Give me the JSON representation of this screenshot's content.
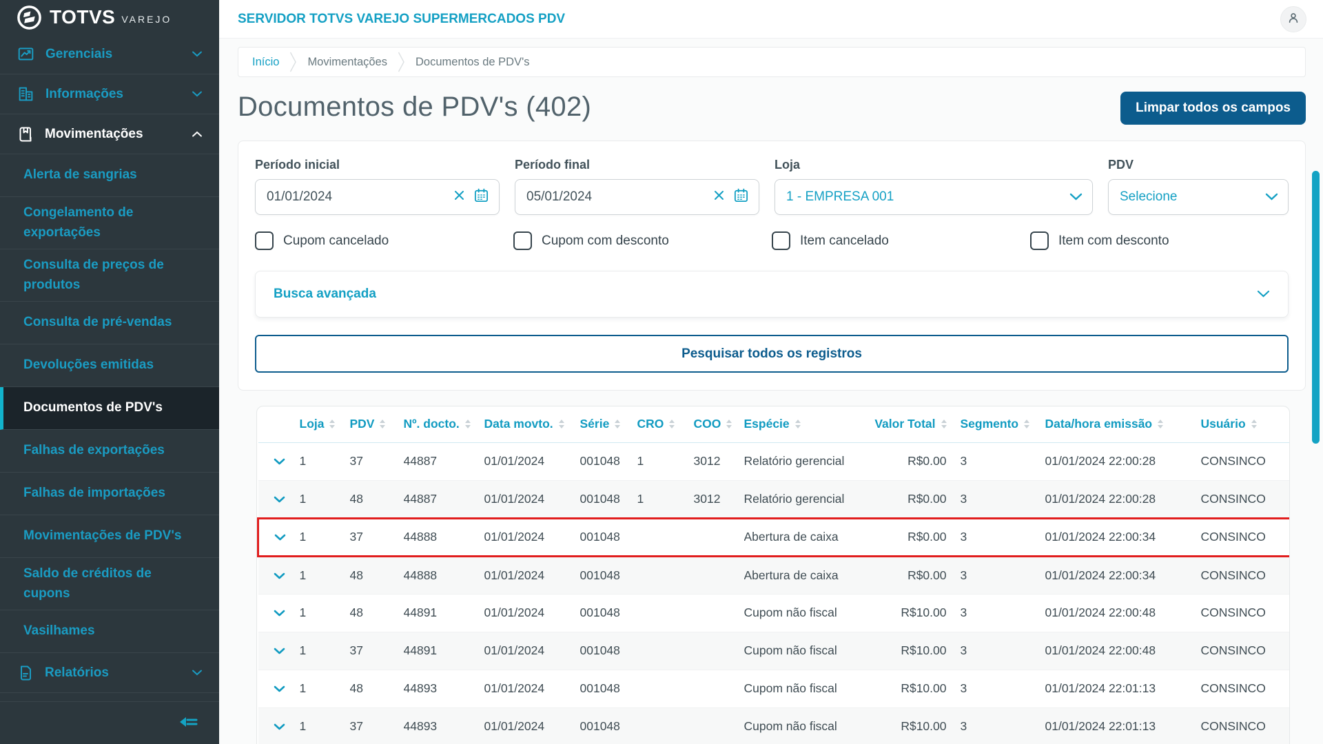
{
  "colors": {
    "accent": "#14a0c4",
    "sidebar_link": "#1a9cc3",
    "dark_blue": "#0c5c8d",
    "sidebar_bg": "#2c373d",
    "sidebar_active_bg": "#1b242a",
    "table_header_teal": "#119bc1",
    "highlight_red": "#e11d1d",
    "scrollbar": "#14a3c4"
  },
  "brand": {
    "name": "TOTVS",
    "sub": "VAREJO"
  },
  "topbar": {
    "title": "SERVIDOR TOTVS VAREJO SUPERMERCADOS PDV"
  },
  "breadcrumb": {
    "items": [
      "Início",
      "Movimentações",
      "Documentos de PDV's"
    ]
  },
  "sidebar": {
    "sections": [
      {
        "label": "Gerenciais",
        "icon": "chart-icon",
        "chevron": "down",
        "active": false
      },
      {
        "label": "Informações",
        "icon": "building-icon",
        "chevron": "down",
        "active": false
      },
      {
        "label": "Movimentações",
        "icon": "book-icon",
        "chevron": "up",
        "active": true
      }
    ],
    "submenu": [
      "Alerta de sangrias",
      "Congelamento de exportações",
      "Consulta de preços de produtos",
      "Consulta de pré-vendas",
      "Devoluções emitidas",
      "Documentos de PDV's",
      "Falhas de exportações",
      "Falhas de importações",
      "Movimentações de PDV's",
      "Saldo de créditos de cupons",
      "Vasilhames"
    ],
    "active_item": "Documentos de PDV's",
    "reports": {
      "label": "Relatórios",
      "icon": "report-icon",
      "chevron": "down"
    }
  },
  "page": {
    "title": "Documentos de PDV's (402)",
    "clear_button_label": "Limpar todos os campos"
  },
  "filters": {
    "fields": [
      {
        "label": "Período inicial",
        "value": "01/01/2024",
        "type": "date"
      },
      {
        "label": "Período final",
        "value": "05/01/2024",
        "type": "date"
      },
      {
        "label": "Loja",
        "value": "1 - EMPRESA 001",
        "type": "select"
      },
      {
        "label": "PDV",
        "value": "Selecione",
        "type": "select"
      }
    ],
    "checkboxes": [
      {
        "label": "Cupom cancelado",
        "checked": false
      },
      {
        "label": "Cupom com desconto",
        "checked": false
      },
      {
        "label": "Item cancelado",
        "checked": false
      },
      {
        "label": "Item com desconto",
        "checked": false
      }
    ],
    "advanced_label": "Busca avançada",
    "search_button_label": "Pesquisar todos os registros"
  },
  "table": {
    "columns": [
      {
        "key": "loja",
        "label": "Loja"
      },
      {
        "key": "pdv",
        "label": "PDV"
      },
      {
        "key": "docto",
        "label": "Nº. docto."
      },
      {
        "key": "data",
        "label": "Data movto."
      },
      {
        "key": "serie",
        "label": "Série"
      },
      {
        "key": "cro",
        "label": "CRO"
      },
      {
        "key": "coo",
        "label": "COO"
      },
      {
        "key": "especie",
        "label": "Espécie"
      },
      {
        "key": "valor",
        "label": "Valor Total"
      },
      {
        "key": "segmento",
        "label": "Segmento"
      },
      {
        "key": "emissao",
        "label": "Data/hora emissão"
      },
      {
        "key": "usuario",
        "label": "Usuário"
      }
    ],
    "rows": [
      {
        "loja": "1",
        "pdv": "37",
        "docto": "44887",
        "data": "01/01/2024",
        "serie": "001048",
        "cro": "1",
        "coo": "3012",
        "especie": "Relatório gerencial",
        "valor": "R$0.00",
        "segmento": "3",
        "emissao": "01/01/2024 22:00:28",
        "usuario": "CONSINCO",
        "highlight": false
      },
      {
        "loja": "1",
        "pdv": "48",
        "docto": "44887",
        "data": "01/01/2024",
        "serie": "001048",
        "cro": "1",
        "coo": "3012",
        "especie": "Relatório gerencial",
        "valor": "R$0.00",
        "segmento": "3",
        "emissao": "01/01/2024 22:00:28",
        "usuario": "CONSINCO",
        "highlight": false
      },
      {
        "loja": "1",
        "pdv": "37",
        "docto": "44888",
        "data": "01/01/2024",
        "serie": "001048",
        "cro": "",
        "coo": "",
        "especie": "Abertura de caixa",
        "valor": "R$0.00",
        "segmento": "3",
        "emissao": "01/01/2024 22:00:34",
        "usuario": "CONSINCO",
        "highlight": true
      },
      {
        "loja": "1",
        "pdv": "48",
        "docto": "44888",
        "data": "01/01/2024",
        "serie": "001048",
        "cro": "",
        "coo": "",
        "especie": "Abertura de caixa",
        "valor": "R$0.00",
        "segmento": "3",
        "emissao": "01/01/2024 22:00:34",
        "usuario": "CONSINCO",
        "highlight": false
      },
      {
        "loja": "1",
        "pdv": "48",
        "docto": "44891",
        "data": "01/01/2024",
        "serie": "001048",
        "cro": "",
        "coo": "",
        "especie": "Cupom não fiscal",
        "valor": "R$10.00",
        "segmento": "3",
        "emissao": "01/01/2024 22:00:48",
        "usuario": "CONSINCO",
        "highlight": false
      },
      {
        "loja": "1",
        "pdv": "37",
        "docto": "44891",
        "data": "01/01/2024",
        "serie": "001048",
        "cro": "",
        "coo": "",
        "especie": "Cupom não fiscal",
        "valor": "R$10.00",
        "segmento": "3",
        "emissao": "01/01/2024 22:00:48",
        "usuario": "CONSINCO",
        "highlight": false
      },
      {
        "loja": "1",
        "pdv": "48",
        "docto": "44893",
        "data": "01/01/2024",
        "serie": "001048",
        "cro": "",
        "coo": "",
        "especie": "Cupom não fiscal",
        "valor": "R$10.00",
        "segmento": "3",
        "emissao": "01/01/2024 22:01:13",
        "usuario": "CONSINCO",
        "highlight": false
      },
      {
        "loja": "1",
        "pdv": "37",
        "docto": "44893",
        "data": "01/01/2024",
        "serie": "001048",
        "cro": "",
        "coo": "",
        "especie": "Cupom não fiscal",
        "valor": "R$10.00",
        "segmento": "3",
        "emissao": "01/01/2024 22:01:13",
        "usuario": "CONSINCO",
        "highlight": false
      }
    ]
  }
}
